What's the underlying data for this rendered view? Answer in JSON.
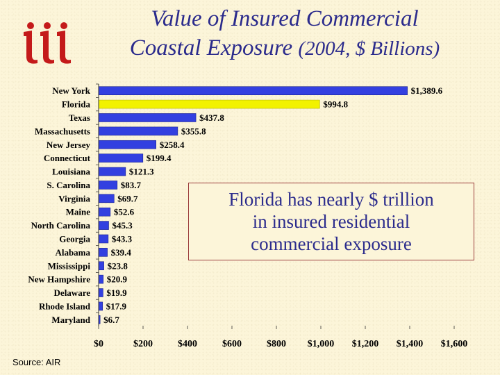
{
  "title": {
    "line1": "Value of Insured Commercial",
    "line2_main": "Coastal Exposure",
    "line2_paren": "(2004, $ Billions)"
  },
  "callout": {
    "line1": "Florida has nearly $ trillion",
    "line2": "in insured residential",
    "line3": "commercial exposure"
  },
  "source": "Source: AIR",
  "colors": {
    "bar": "#3340e0",
    "highlight": "#f2f200",
    "title": "#2b2b8c",
    "logo": "#c41a1a"
  },
  "chart_data": {
    "type": "bar",
    "orientation": "horizontal",
    "title": "Value of Insured Commercial Coastal Exposure (2004, $ Billions)",
    "categories": [
      "New York",
      "Florida",
      "Texas",
      "Massachusetts",
      "New Jersey",
      "Connecticut",
      "Louisiana",
      "S. Carolina",
      "Virginia",
      "Maine",
      "North Carolina",
      "Georgia",
      "Alabama",
      "Mississippi",
      "New Hampshire",
      "Delaware",
      "Rhode Island",
      "Maryland"
    ],
    "values": [
      1389.6,
      994.8,
      437.8,
      355.8,
      258.4,
      199.4,
      121.3,
      83.7,
      69.7,
      52.6,
      45.3,
      43.3,
      39.4,
      23.8,
      20.9,
      19.9,
      17.9,
      6.7
    ],
    "data_labels": [
      "$1,389.6",
      "$994.8",
      "$437.8",
      "$355.8",
      "$258.4",
      "$199.4",
      "$121.3",
      "$83.7",
      "$69.7",
      "$52.6",
      "$45.3",
      "$43.3",
      "$39.4",
      "$23.8",
      "$20.9",
      "$19.9",
      "$17.9",
      "$6.7"
    ],
    "highlight_category": "Florida",
    "xlim": [
      0,
      1600
    ],
    "xticks": [
      0,
      200,
      400,
      600,
      800,
      1000,
      1200,
      1400,
      1600
    ],
    "xtick_labels": [
      "$0",
      "$200",
      "$400",
      "$600",
      "$800",
      "$1,000",
      "$1,200",
      "$1,400",
      "$1,600"
    ],
    "grid": false
  }
}
